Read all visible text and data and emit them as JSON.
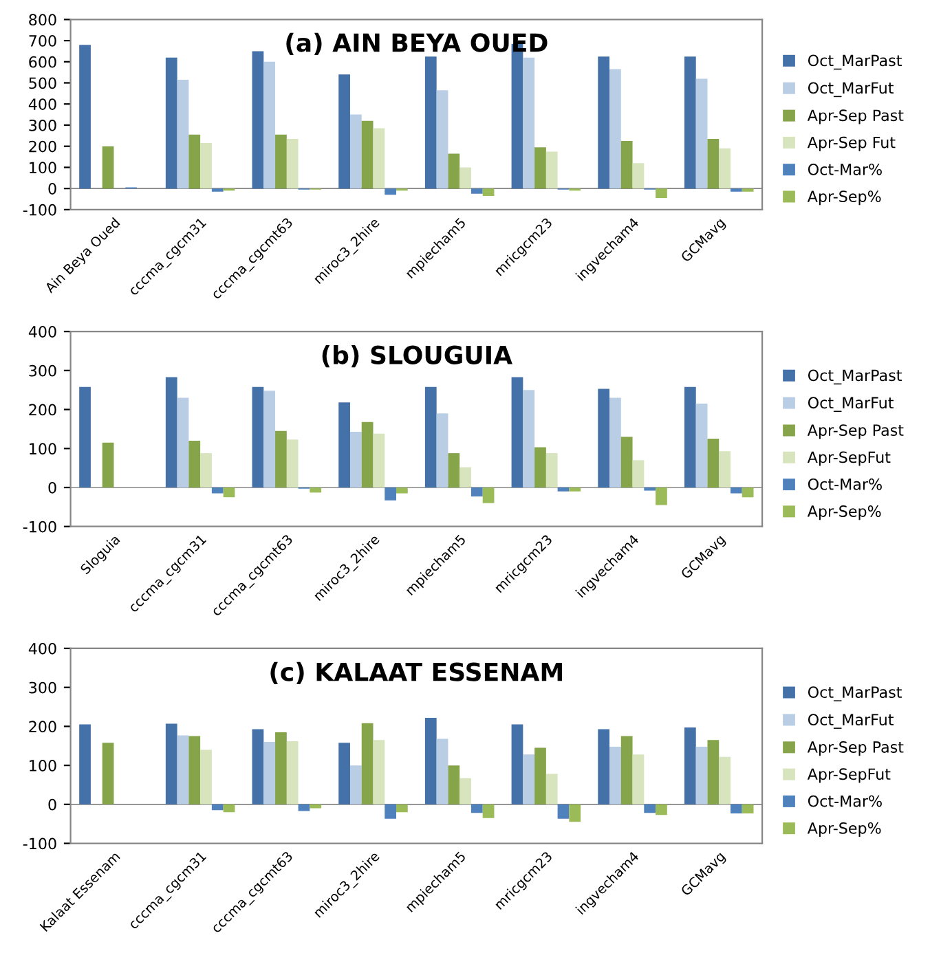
{
  "chart_data": [
    {
      "type": "bar",
      "title": "(a) AIN BEYA OUED",
      "categories": [
        "Ain Beya Oued",
        "cccma_cgcm31",
        "cccma_cgcmt63",
        "miroc3_2hire",
        "mpiecham5",
        "mricgcm23",
        "ingvecham4",
        "GCMavg"
      ],
      "ylim": [
        -100,
        800
      ],
      "yticks": [
        -100,
        0,
        100,
        200,
        300,
        400,
        500,
        600,
        700,
        800
      ],
      "legend": "right",
      "series": [
        {
          "name": "Oct_MarPast",
          "color": "#4472a8",
          "values": [
            680,
            620,
            650,
            540,
            625,
            685,
            625,
            625
          ]
        },
        {
          "name": "Oct_MarFut",
          "color": "#b9cde5",
          "values": [
            null,
            515,
            600,
            350,
            465,
            620,
            565,
            520
          ]
        },
        {
          "name": "Apr-Sep Past",
          "color": "#86a44a",
          "values": [
            200,
            255,
            255,
            320,
            165,
            195,
            225,
            235
          ]
        },
        {
          "name": "Apr-Sep Fut",
          "color": "#d7e4bd",
          "values": [
            null,
            215,
            235,
            285,
            100,
            175,
            120,
            190
          ]
        },
        {
          "name": "Oct-Mar%",
          "color": "#4f81bd",
          "values": [
            5,
            -15,
            -5,
            -30,
            -25,
            -5,
            -5,
            -15
          ]
        },
        {
          "name": "Apr-Sep%",
          "color": "#9bbb59",
          "values": [
            null,
            -10,
            -5,
            -10,
            -35,
            -10,
            -45,
            -15
          ]
        }
      ]
    },
    {
      "type": "bar",
      "title": "(b) SLOUGUIA",
      "categories": [
        "Sloguia",
        "cccma_cgcm31",
        "cccma_cgcmt63",
        "miroc3_2hire",
        "mpiecham5",
        "mricgcm23",
        "ingvecham4",
        "GCMavg"
      ],
      "ylim": [
        -100,
        400
      ],
      "yticks": [
        -100,
        0,
        100,
        200,
        300,
        400
      ],
      "legend": "right",
      "series": [
        {
          "name": "Oct_MarPast",
          "color": "#4472a8",
          "values": [
            258,
            283,
            258,
            218,
            258,
            283,
            253,
            258
          ]
        },
        {
          "name": "Oct_MarFut",
          "color": "#b9cde5",
          "values": [
            null,
            230,
            248,
            143,
            190,
            250,
            230,
            215
          ]
        },
        {
          "name": "Apr-Sep Past",
          "color": "#86a44a",
          "values": [
            115,
            120,
            145,
            168,
            88,
            103,
            130,
            125
          ]
        },
        {
          "name": "Apr-SepFut",
          "color": "#d7e4bd",
          "values": [
            null,
            88,
            123,
            138,
            52,
            88,
            70,
            93
          ]
        },
        {
          "name": "Oct-Mar%",
          "color": "#4f81bd",
          "values": [
            null,
            -15,
            -3,
            -33,
            -23,
            -10,
            -8,
            -15
          ]
        },
        {
          "name": "Apr-Sep%",
          "color": "#9bbb59",
          "values": [
            null,
            -25,
            -13,
            -15,
            -40,
            -10,
            -45,
            -25
          ]
        }
      ]
    },
    {
      "type": "bar",
      "title": "(c) KALAAT ESSENAM",
      "categories": [
        "Kalaat Essenam",
        "cccma_cgcm31",
        "cccma_cgcmt63",
        "miroc3_2hire",
        "mpiecham5",
        "mricgcm23",
        "ingvecham4",
        "GCMavg"
      ],
      "ylim": [
        -100,
        400
      ],
      "yticks": [
        -100,
        0,
        100,
        200,
        300,
        400
      ],
      "legend": "right",
      "series": [
        {
          "name": "Oct_MarPast",
          "color": "#4472a8",
          "values": [
            205,
            207,
            193,
            158,
            222,
            205,
            193,
            197
          ]
        },
        {
          "name": "Oct_MarFut",
          "color": "#b9cde5",
          "values": [
            null,
            177,
            160,
            100,
            168,
            128,
            148,
            148
          ]
        },
        {
          "name": "Apr-Sep Past",
          "color": "#86a44a",
          "values": [
            158,
            175,
            185,
            208,
            100,
            145,
            175,
            165
          ]
        },
        {
          "name": "Apr-SepFut",
          "color": "#d7e4bd",
          "values": [
            null,
            140,
            162,
            165,
            67,
            78,
            128,
            122
          ]
        },
        {
          "name": "Oct-Mar%",
          "color": "#4f81bd",
          "values": [
            null,
            -15,
            -17,
            -37,
            -22,
            -37,
            -22,
            -23
          ]
        },
        {
          "name": "Apr-Sep%",
          "color": "#9bbb59",
          "values": [
            null,
            -20,
            -10,
            -20,
            -35,
            -45,
            -27,
            -23
          ]
        }
      ]
    }
  ]
}
